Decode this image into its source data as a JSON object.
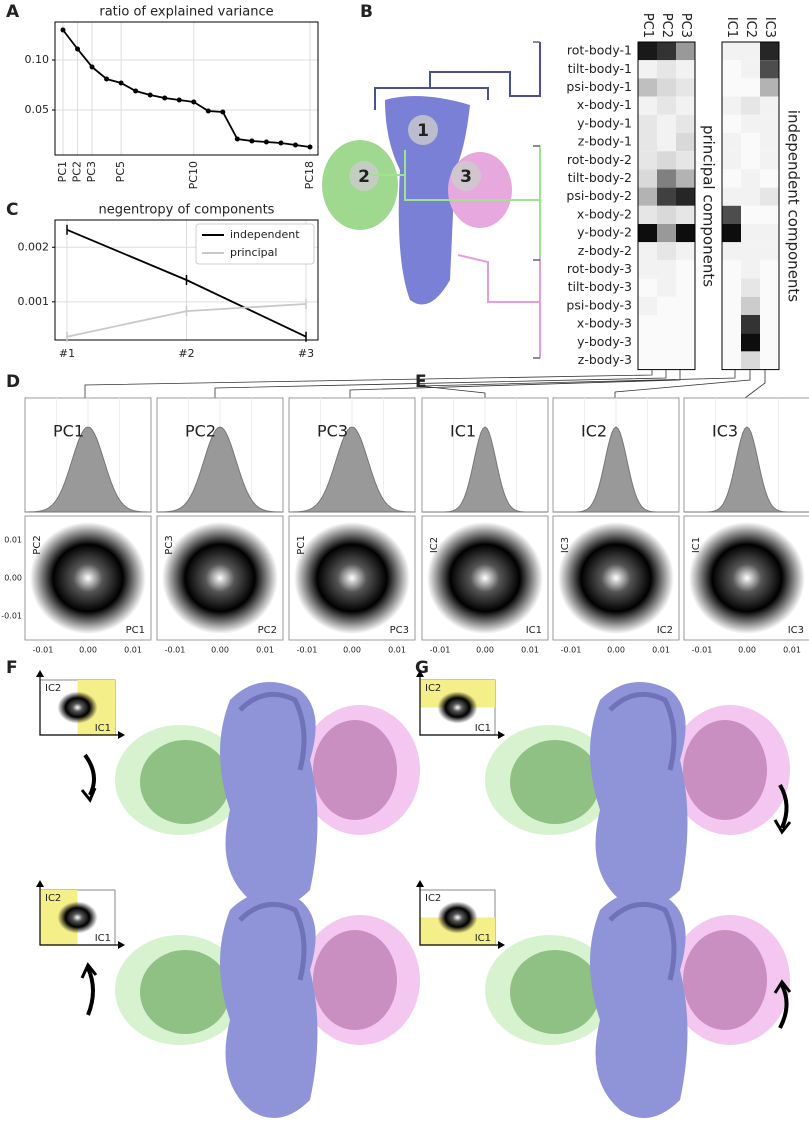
{
  "panel_labels": [
    "A",
    "B",
    "C",
    "D",
    "E",
    "F",
    "G"
  ],
  "structure_labels": [
    "1",
    "2",
    "3"
  ],
  "chart_data": [
    {
      "type": "line",
      "title": "ratio of explained variance",
      "categories": [
        "PC1",
        "PC2",
        "PC3",
        null,
        "PC5",
        null,
        null,
        null,
        null,
        "PC10",
        null,
        null,
        null,
        null,
        null,
        null,
        null,
        "PC18"
      ],
      "values": [
        0.13,
        0.111,
        0.093,
        0.081,
        0.077,
        0.069,
        0.065,
        0.062,
        0.06,
        0.058,
        0.049,
        0.048,
        0.021,
        0.019,
        0.018,
        0.017,
        0.015,
        0.013
      ],
      "color": "#000000",
      "ylim": [
        0.005,
        0.138
      ],
      "yticks": [
        0.05,
        {
          "value": 0.1,
          "label": "0.10"
        }
      ],
      "grid": true
    },
    {
      "type": "line",
      "title": "negentropy of components",
      "categories": [
        "#1",
        "#2",
        "#3"
      ],
      "series": [
        {
          "name": "independent",
          "color": "#000000",
          "values": [
            0.00232,
            0.0014,
            0.00036
          ]
        },
        {
          "name": "principal",
          "color": "#c8c8c8",
          "values": [
            0.00036,
            0.00083,
            0.00096
          ]
        }
      ],
      "ylim": [
        0.0003,
        0.0025
      ],
      "yticks": [
        0.001,
        0.002
      ],
      "grid": true,
      "legend": "upper right"
    },
    {
      "type": "heatmap",
      "axis_label": "principal components",
      "columns": [
        "PC1",
        "PC2",
        "PC3"
      ],
      "rows": [
        "rot-body-1",
        "tilt-body-1",
        "psi-body-1",
        "x-body-1",
        "y-body-1",
        "z-body-1",
        "rot-body-2",
        "tilt-body-2",
        "psi-body-2",
        "x-body-2",
        "y-body-2",
        "z-body-2",
        "rot-body-3",
        "tilt-body-3",
        "psi-body-3",
        "x-body-3",
        "y-body-3",
        "z-body-3"
      ],
      "values": [
        [
          0.9,
          0.8,
          0.4
        ],
        [
          0.05,
          0.1,
          0.05
        ],
        [
          0.25,
          0.15,
          0.1
        ],
        [
          0.05,
          0.1,
          0.05
        ],
        [
          0.1,
          0.05,
          0.1
        ],
        [
          0.1,
          0.05,
          0.15
        ],
        [
          0.1,
          0.15,
          0.1
        ],
        [
          0.15,
          0.5,
          0.3
        ],
        [
          0.3,
          0.75,
          0.85
        ],
        [
          0.1,
          0.15,
          0.1
        ],
        [
          0.95,
          0.4,
          0.95
        ],
        [
          0.05,
          0.1,
          0.05
        ],
        [
          0.05,
          0.05,
          0.02
        ],
        [
          0.02,
          0.05,
          0.02
        ],
        [
          0.05,
          0.02,
          0.02
        ],
        [
          0.02,
          0.02,
          0.02
        ],
        [
          0.02,
          0.02,
          0.02
        ],
        [
          0.02,
          0.02,
          0.02
        ]
      ]
    },
    {
      "type": "heatmap",
      "axis_label": "independent components",
      "columns": [
        "IC1",
        "IC2",
        "IC3"
      ],
      "values": [
        [
          0.05,
          0.05,
          0.85
        ],
        [
          0.02,
          0.05,
          0.7
        ],
        [
          0.02,
          0.02,
          0.3
        ],
        [
          0.05,
          0.1,
          0.05
        ],
        [
          0.02,
          0.05,
          0.05
        ],
        [
          0.05,
          0.02,
          0.05
        ],
        [
          0.05,
          0.02,
          0.05
        ],
        [
          0.02,
          0.05,
          0.02
        ],
        [
          0.05,
          0.05,
          0.1
        ],
        [
          0.7,
          0.02,
          0.02
        ],
        [
          0.95,
          0.05,
          0.05
        ],
        [
          0.05,
          0.05,
          0.05
        ],
        [
          0.02,
          0.05,
          0.02
        ],
        [
          0.02,
          0.1,
          0.02
        ],
        [
          0.02,
          0.2,
          0.02
        ],
        [
          0.02,
          0.8,
          0.02
        ],
        [
          0.02,
          0.95,
          0.02
        ],
        [
          0.02,
          0.15,
          0.02
        ]
      ]
    }
  ],
  "distribution_panels": [
    {
      "title": "PC1",
      "x_label": "PC1",
      "y_label": "PC2"
    },
    {
      "title": "PC2",
      "x_label": "PC2",
      "y_label": "PC3"
    },
    {
      "title": "PC3",
      "x_label": "PC3",
      "y_label": "PC1"
    },
    {
      "title": "IC1",
      "x_label": "IC1",
      "y_label": "IC2"
    },
    {
      "title": "IC2",
      "x_label": "IC2",
      "y_label": "IC3"
    },
    {
      "title": "IC3",
      "x_label": "IC3",
      "y_label": "IC1"
    }
  ],
  "scatter_ticks": [
    "-0.01",
    "0.00",
    "0.01"
  ],
  "insets": [
    {
      "x_label": "IC1",
      "y_label": "IC2"
    },
    {
      "x_label": "IC1",
      "y_label": "IC2"
    },
    {
      "x_label": "IC1",
      "y_label": "IC2"
    },
    {
      "x_label": "IC1",
      "y_label": "IC2"
    }
  ]
}
